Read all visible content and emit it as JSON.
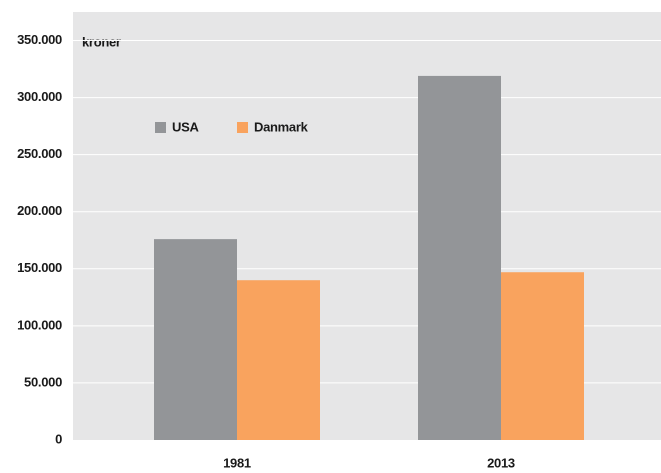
{
  "chart_data": {
    "type": "bar",
    "ylabel": "kroner",
    "categories": [
      "1981",
      "2013"
    ],
    "series": [
      {
        "name": "USA",
        "color": "#939598",
        "values": [
          176000,
          319000
        ]
      },
      {
        "name": "Danmark",
        "color": "#f9a35e",
        "values": [
          140000,
          147000
        ]
      }
    ],
    "ylim": [
      0,
      375000
    ],
    "yticks": [
      0,
      {
        "value": 50000,
        "label": "50.000"
      },
      {
        "value": 100000,
        "label": "100.000"
      },
      {
        "value": 150000,
        "label": "150.000"
      },
      {
        "value": 200000,
        "label": "200.000"
      },
      {
        "value": 250000,
        "label": "250.000"
      },
      {
        "value": 300000,
        "label": "300.000"
      },
      {
        "value": 350000,
        "label": "350.000"
      }
    ],
    "grid": true,
    "legend": "top-left"
  }
}
